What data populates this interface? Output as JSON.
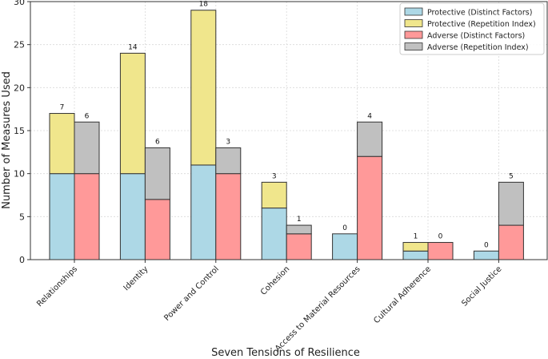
{
  "chart_data": {
    "type": "bar",
    "title": "",
    "xlabel": "Seven Tensions of Resilience",
    "ylabel": "Number of Measures Used",
    "ylim": [
      0,
      30
    ],
    "yticks": [
      0,
      5,
      10,
      15,
      20,
      25,
      30
    ],
    "grid": true,
    "legend_position": "top-right",
    "categories": [
      "Relationships",
      "Identity",
      "Power and Control",
      "Cohesion",
      "Access to Material Resources",
      "Cultural Adherence",
      "Social Justice"
    ],
    "series": [
      {
        "name": "Protective (Distinct Factors)",
        "color": "#add8e6",
        "group": "protective",
        "values": [
          10,
          10,
          11,
          6,
          3,
          1,
          1
        ]
      },
      {
        "name": "Protective (Repetition Index)",
        "color": "#f0e68c",
        "group": "protective",
        "values": [
          7,
          14,
          18,
          3,
          0,
          1,
          0
        ]
      },
      {
        "name": "Adverse (Distinct Factors)",
        "color": "#ff9999",
        "group": "adverse",
        "values": [
          10,
          7,
          10,
          3,
          12,
          2,
          4
        ]
      },
      {
        "name": "Adverse (Repetition Index)",
        "color": "#c0c0c0",
        "group": "adverse",
        "values": [
          6,
          6,
          3,
          1,
          4,
          0,
          5
        ]
      }
    ],
    "data_labels": {
      "protective": [
        "7",
        "14",
        "18",
        "3",
        "0",
        "1",
        "0"
      ],
      "adverse": [
        "6",
        "6",
        "3",
        "1",
        "4",
        "0",
        "5"
      ]
    }
  }
}
